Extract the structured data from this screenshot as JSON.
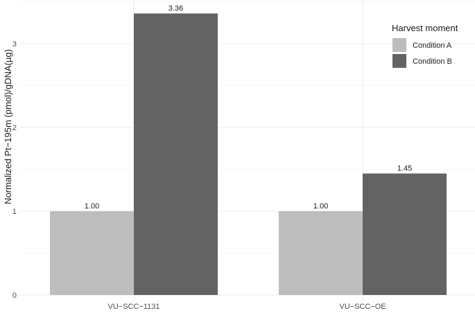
{
  "chart_data": {
    "type": "bar",
    "ylabel": "Normalized Pt−195m (pmol)/gDNA(µg)",
    "ylim": [
      0,
      3.5
    ],
    "yticks": [
      0,
      1,
      2,
      3
    ],
    "categories": [
      "VU−SCC−1131",
      "VU−SCC−OE"
    ],
    "series": [
      {
        "name": "Condition A",
        "values": [
          1.0,
          1.0
        ],
        "color": "#bdbdbd"
      },
      {
        "name": "Condition B",
        "values": [
          3.36,
          1.45
        ],
        "color": "#636363"
      }
    ],
    "data_labels": [
      [
        "1.00",
        "3.36"
      ],
      [
        "1.00",
        "1.45"
      ]
    ],
    "legend": {
      "title": "Harvest moment",
      "position": "top-right"
    },
    "grid": true
  }
}
